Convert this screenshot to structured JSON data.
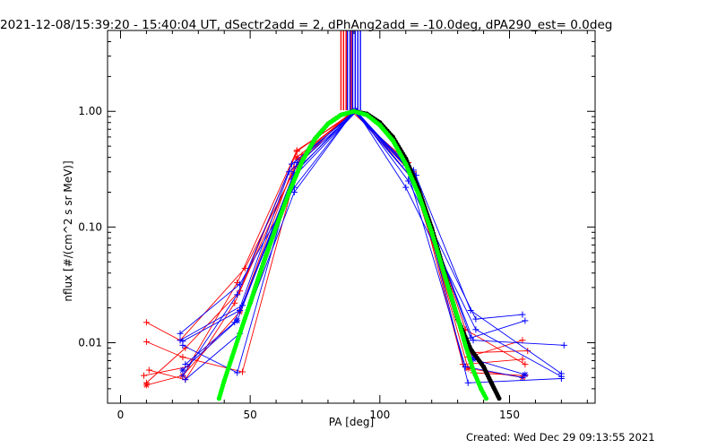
{
  "header": {
    "title": "2021-12-08/15:39:20 - 15:40:04 UT, dSectr2add = 2, dPhAng2add = -10.0deg, dPA290_est=  0.0deg"
  },
  "footer": {
    "created": "Created: Wed Dec 29 09:13:55 2021"
  },
  "chart_data": {
    "type": "line",
    "xlabel": "PA [deg]",
    "ylabel": "nflux [#/(cm^2 s sr MeV)]",
    "xlim": [
      -5,
      183
    ],
    "ylim": [
      0.003,
      5.0
    ],
    "yscale": "log",
    "x_ticks": [
      0,
      50,
      100,
      150
    ],
    "x_tick_labels": [
      "0",
      "50",
      "100",
      "150"
    ],
    "y_ticks": [
      0.01,
      0.1,
      1.0
    ],
    "y_tick_labels": [
      "0.01",
      "0.10",
      "1.00"
    ],
    "grid": false,
    "colors": {
      "red": "#ff0000",
      "blue": "#0000ff",
      "black": "#000000",
      "green": "#00ff00"
    },
    "series": [
      {
        "color": "red",
        "marker": "plus",
        "x": [
          10,
          25,
          46,
          68,
          90,
          111,
          134,
          155
        ],
        "y": [
          0.0045,
          0.009,
          0.028,
          0.45,
          1.0,
          0.33,
          0.0075,
          0.0105
        ]
      },
      {
        "color": "red",
        "marker": "plus",
        "x": [
          10,
          23,
          48,
          70,
          90,
          113,
          133,
          156
        ],
        "y": [
          0.015,
          0.0105,
          0.044,
          0.42,
          1.0,
          0.3,
          0.013,
          0.0065
        ]
      },
      {
        "color": "red",
        "marker": "plus",
        "x": [
          9,
          26,
          45,
          68,
          91,
          112,
          135,
          157
        ],
        "y": [
          0.0052,
          0.0062,
          0.033,
          0.46,
          1.0,
          0.27,
          0.0082,
          0.0085
        ]
      },
      {
        "color": "red",
        "marker": "plus",
        "x": [
          10,
          24,
          47,
          69,
          90,
          114,
          132,
          155
        ],
        "y": [
          0.0102,
          0.0075,
          0.0056,
          0.38,
          1.0,
          0.24,
          0.0065,
          0.0072
        ]
      },
      {
        "color": "red",
        "marker": "plus",
        "x": [
          11,
          25,
          44,
          67,
          89,
          111,
          136,
          156
        ],
        "y": [
          0.0058,
          0.0048,
          0.022,
          0.32,
          1.0,
          0.36,
          0.0055,
          0.0052
        ]
      },
      {
        "color": "red",
        "marker": "star",
        "x": [
          10,
          24,
          46,
          68,
          90,
          113,
          134,
          155
        ],
        "y": [
          0.0043,
          0.0052,
          0.0185,
          0.4,
          1.0,
          0.28,
          0.006,
          0.005
        ]
      },
      {
        "color": "blue",
        "marker": "plus",
        "x": [
          24,
          45,
          66,
          91,
          112,
          136,
          171
        ],
        "y": [
          0.0052,
          0.026,
          0.35,
          1.0,
          0.27,
          0.0105,
          0.0095
        ]
      },
      {
        "color": "blue",
        "marker": "plus",
        "x": [
          23,
          46,
          67,
          90,
          113,
          135,
          170
        ],
        "y": [
          0.012,
          0.032,
          0.22,
          1.0,
          0.31,
          0.019,
          0.0054
        ]
      },
      {
        "color": "blue",
        "marker": "plus",
        "x": [
          25,
          44,
          65,
          91,
          110,
          137,
          170
        ],
        "y": [
          0.0065,
          0.015,
          0.3,
          1.0,
          0.22,
          0.013,
          0.0051
        ]
      },
      {
        "color": "blue",
        "marker": "plus",
        "x": [
          24,
          45,
          68,
          90,
          114,
          134,
          170
        ],
        "y": [
          0.0095,
          0.0055,
          0.36,
          1.0,
          0.28,
          0.0045,
          0.0049
        ]
      },
      {
        "color": "blue",
        "marker": "plus",
        "x": [
          23,
          47,
          66,
          91,
          111,
          137,
          155
        ],
        "y": [
          0.0105,
          0.021,
          0.26,
          1.0,
          0.25,
          0.016,
          0.0175
        ]
      },
      {
        "color": "blue",
        "marker": "plus",
        "x": [
          25,
          46,
          67,
          90,
          112,
          135,
          156
        ],
        "y": [
          0.0048,
          0.012,
          0.2,
          1.0,
          0.3,
          0.011,
          0.0155
        ]
      },
      {
        "color": "blue",
        "marker": "plus",
        "x": [
          24,
          46,
          69,
          91,
          110,
          133,
          155
        ],
        "y": [
          0.0103,
          0.019,
          0.33,
          1.0,
          0.34,
          0.0062,
          0.005
        ]
      },
      {
        "color": "blue",
        "marker": "star",
        "x": [
          24,
          45,
          67,
          90,
          112,
          136,
          156
        ],
        "y": [
          0.0058,
          0.0155,
          0.29,
          1.0,
          0.27,
          0.0072,
          0.0053
        ]
      },
      {
        "color": "black",
        "marker": "dot",
        "x": [
          50,
          55,
          60,
          65,
          70,
          75,
          80,
          85,
          90,
          95,
          100,
          105,
          110,
          115,
          120,
          125,
          130,
          135,
          140,
          143,
          146
        ],
        "y": [
          0.022,
          0.048,
          0.1,
          0.2,
          0.37,
          0.58,
          0.78,
          0.93,
          1.0,
          0.95,
          0.8,
          0.6,
          0.39,
          0.21,
          0.098,
          0.04,
          0.016,
          0.0088,
          0.0062,
          0.0045,
          0.0033
        ]
      },
      {
        "color": "green",
        "marker": "dot",
        "x": [
          38,
          40,
          43,
          46,
          50,
          55,
          60,
          65,
          70,
          75,
          80,
          85,
          90,
          95,
          100,
          105,
          110,
          115,
          120,
          125,
          130,
          133,
          136,
          139,
          141
        ],
        "y": [
          0.0033,
          0.0047,
          0.0075,
          0.012,
          0.022,
          0.048,
          0.1,
          0.2,
          0.37,
          0.58,
          0.78,
          0.93,
          1.0,
          0.93,
          0.76,
          0.56,
          0.35,
          0.19,
          0.09,
          0.038,
          0.0165,
          0.0095,
          0.0058,
          0.004,
          0.0033
        ]
      }
    ],
    "bars": [
      {
        "color": "red",
        "x": [
          85,
          86,
          87,
          89
        ]
      },
      {
        "color": "blue",
        "x": [
          87.5,
          88.5,
          89.5,
          90.5,
          91.5,
          92.5
        ]
      }
    ]
  }
}
